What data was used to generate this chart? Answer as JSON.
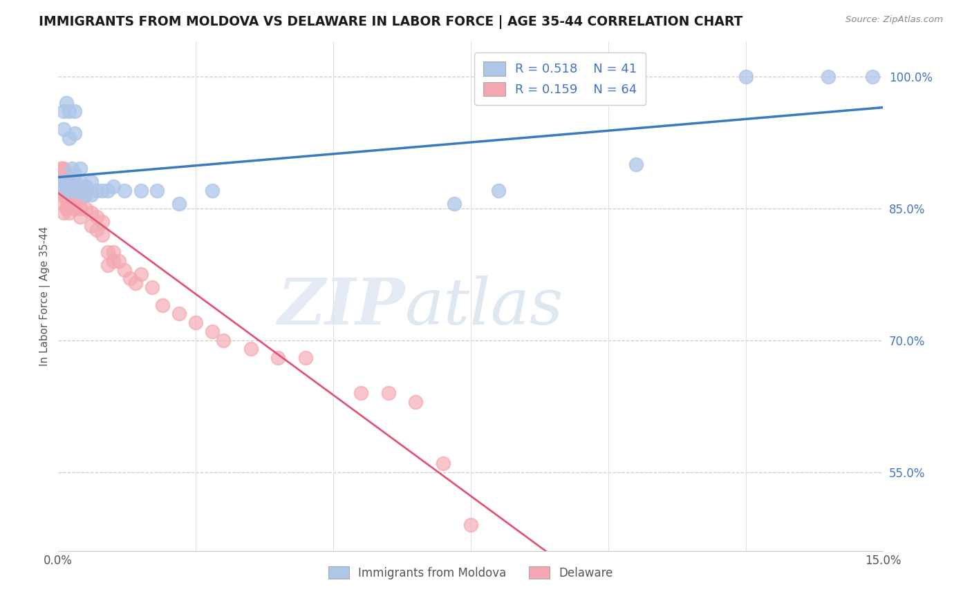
{
  "title": "IMMIGRANTS FROM MOLDOVA VS DELAWARE IN LABOR FORCE | AGE 35-44 CORRELATION CHART",
  "source": "Source: ZipAtlas.com",
  "ylabel": "In Labor Force | Age 35-44",
  "ytick_labels": [
    "55.0%",
    "70.0%",
    "85.0%",
    "100.0%"
  ],
  "ytick_values": [
    0.55,
    0.7,
    0.85,
    1.0
  ],
  "legend_r1": "R = 0.518",
  "legend_n1": "N = 41",
  "legend_r2": "R = 0.159",
  "legend_n2": "N = 64",
  "legend_label1": "Immigrants from Moldova",
  "legend_label2": "Delaware",
  "blue_scatter_color": "#aec6e8",
  "pink_scatter_color": "#f4a7b0",
  "blue_line_color": "#3a7abf",
  "pink_line_color": "#e05577",
  "watermark_zip": "ZIP",
  "watermark_atlas": "atlas",
  "xmin": 0.0,
  "xmax": 0.15,
  "ymin": 0.46,
  "ymax": 1.04,
  "blue_x": [
    0.0005,
    0.0008,
    0.001,
    0.001,
    0.001,
    0.0015,
    0.0015,
    0.002,
    0.002,
    0.002,
    0.0025,
    0.0025,
    0.003,
    0.003,
    0.003,
    0.003,
    0.0035,
    0.0035,
    0.004,
    0.004,
    0.004,
    0.005,
    0.005,
    0.005,
    0.006,
    0.006,
    0.007,
    0.008,
    0.009,
    0.01,
    0.012,
    0.015,
    0.018,
    0.022,
    0.028,
    0.072,
    0.08,
    0.105,
    0.125,
    0.14,
    0.148
  ],
  "blue_y": [
    0.875,
    0.88,
    0.96,
    0.94,
    0.88,
    0.97,
    0.88,
    0.96,
    0.93,
    0.87,
    0.895,
    0.87,
    0.96,
    0.935,
    0.89,
    0.875,
    0.875,
    0.87,
    0.895,
    0.88,
    0.87,
    0.875,
    0.87,
    0.865,
    0.88,
    0.865,
    0.87,
    0.87,
    0.87,
    0.875,
    0.87,
    0.87,
    0.87,
    0.855,
    0.87,
    0.855,
    0.87,
    0.9,
    1.0,
    1.0,
    1.0
  ],
  "pink_x": [
    0.0002,
    0.0003,
    0.0005,
    0.0005,
    0.0007,
    0.001,
    0.001,
    0.001,
    0.001,
    0.001,
    0.0012,
    0.0012,
    0.0015,
    0.0015,
    0.0015,
    0.0015,
    0.002,
    0.002,
    0.002,
    0.002,
    0.002,
    0.0025,
    0.0025,
    0.003,
    0.003,
    0.003,
    0.003,
    0.0035,
    0.004,
    0.004,
    0.004,
    0.004,
    0.005,
    0.005,
    0.005,
    0.006,
    0.006,
    0.007,
    0.007,
    0.008,
    0.008,
    0.009,
    0.009,
    0.01,
    0.01,
    0.011,
    0.012,
    0.013,
    0.014,
    0.015,
    0.017,
    0.019,
    0.022,
    0.025,
    0.028,
    0.03,
    0.035,
    0.04,
    0.045,
    0.055,
    0.06,
    0.065,
    0.07,
    0.075
  ],
  "pink_y": [
    0.88,
    0.88,
    0.895,
    0.87,
    0.895,
    0.895,
    0.875,
    0.865,
    0.855,
    0.845,
    0.88,
    0.87,
    0.88,
    0.87,
    0.86,
    0.85,
    0.885,
    0.875,
    0.865,
    0.855,
    0.845,
    0.875,
    0.865,
    0.88,
    0.87,
    0.86,
    0.85,
    0.87,
    0.87,
    0.86,
    0.85,
    0.84,
    0.875,
    0.865,
    0.85,
    0.845,
    0.83,
    0.84,
    0.825,
    0.835,
    0.82,
    0.8,
    0.785,
    0.8,
    0.79,
    0.79,
    0.78,
    0.77,
    0.765,
    0.775,
    0.76,
    0.74,
    0.73,
    0.72,
    0.71,
    0.7,
    0.69,
    0.68,
    0.68,
    0.64,
    0.64,
    0.63,
    0.56,
    0.49
  ]
}
